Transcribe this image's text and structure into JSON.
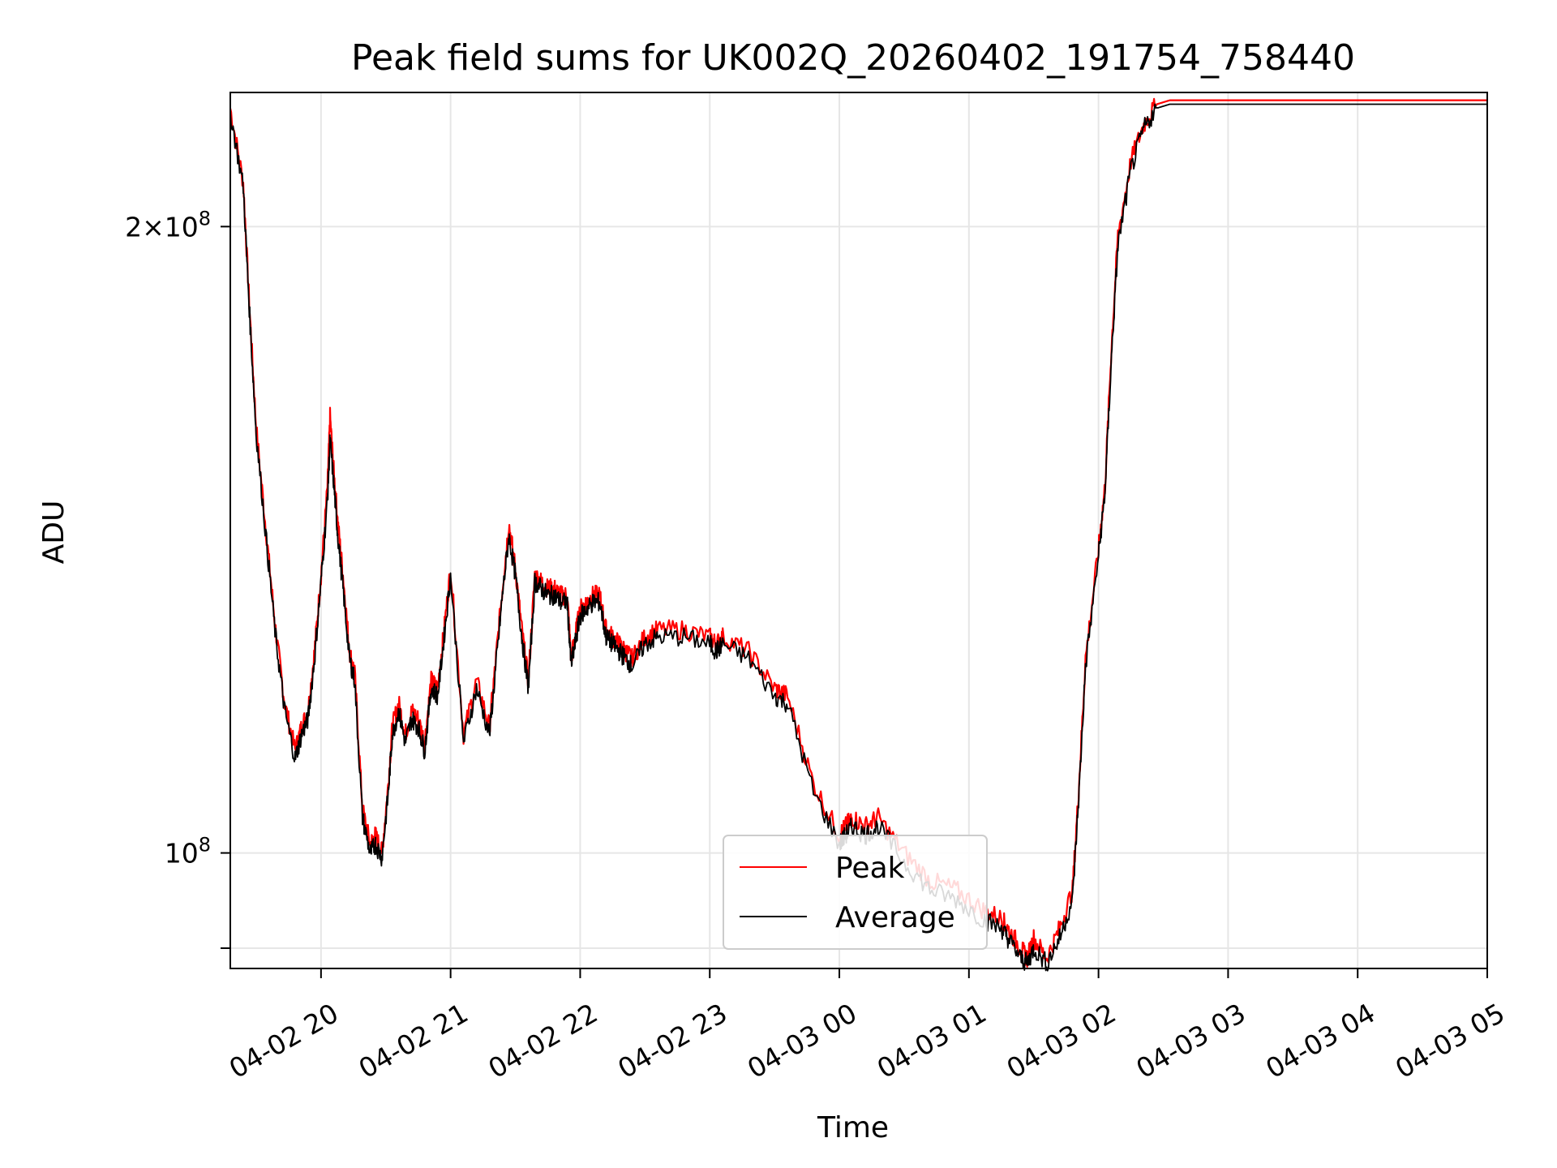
{
  "chart_data": {
    "type": "line",
    "title": "Peak field sums for UK002Q_20260402_191754_758440",
    "xlabel": "Time",
    "ylabel": "ADU",
    "yscale": "log",
    "ylim": [
      88000000,
      232000000
    ],
    "x_unit": "hours since 04-02 19:18",
    "xlim": [
      0,
      9.7
    ],
    "x_ticks": [
      {
        "label": "04-02 20",
        "value": 0.7
      },
      {
        "label": "04-02 21",
        "value": 1.7
      },
      {
        "label": "04-02 22",
        "value": 2.7
      },
      {
        "label": "04-02 23",
        "value": 3.7
      },
      {
        "label": "04-03 00",
        "value": 4.7
      },
      {
        "label": "04-03 01",
        "value": 5.7
      },
      {
        "label": "04-03 02",
        "value": 6.7
      },
      {
        "label": "04-03 03",
        "value": 7.7
      },
      {
        "label": "04-03 04",
        "value": 8.7
      },
      {
        "label": "04-03 05",
        "value": 9.7
      }
    ],
    "y_ticks": [
      {
        "label_base": "2×10",
        "label_exp": "8",
        "value": 200000000
      },
      {
        "label_base": "10",
        "label_exp": "8",
        "value": 100000000
      },
      {
        "label_base": "",
        "label_exp": "",
        "value": 90000000
      }
    ],
    "legend": {
      "position": "lower-center"
    },
    "series": [
      {
        "name": "Peak",
        "color": "#ff0000",
        "x": [
          0,
          0.1,
          0.15,
          0.2,
          0.28,
          0.35,
          0.42,
          0.5,
          0.55,
          0.6,
          0.65,
          0.7,
          0.75,
          0.77,
          0.8,
          0.83,
          0.87,
          0.92,
          0.96,
          1.02,
          1.08,
          1.12,
          1.17,
          1.22,
          1.25,
          1.3,
          1.35,
          1.4,
          1.45,
          1.5,
          1.55,
          1.6,
          1.65,
          1.7,
          1.8,
          1.9,
          2.0,
          2.05,
          2.1,
          2.15,
          2.2,
          2.25,
          2.3,
          2.35,
          2.4,
          2.45,
          2.5,
          2.55,
          2.6,
          2.63,
          2.66,
          2.7,
          2.75,
          2.8,
          2.85,
          2.9,
          2.95,
          3.0,
          3.05,
          3.1,
          3.2,
          3.3,
          3.5,
          3.7,
          3.75,
          3.8,
          4.0,
          4.2,
          4.3,
          4.5,
          4.7,
          4.75,
          4.8,
          4.9,
          5.0,
          5.2,
          5.4,
          5.6,
          5.8,
          5.95,
          6.0,
          6.1,
          6.15,
          6.2,
          6.3,
          6.4,
          6.5,
          6.55,
          6.6,
          6.7,
          6.75,
          6.8,
          6.85,
          6.95,
          7.05,
          7.15,
          7.25,
          7.35,
          7.45,
          7.55,
          7.65,
          7.8,
          8.0,
          8.2,
          8.4,
          8.55,
          8.65,
          8.75,
          8.85,
          8.95,
          9.1,
          9.2,
          9.3,
          9.4,
          9.5,
          9.55,
          9.6,
          9.65,
          9.7
        ],
        "values": [
          228000000,
          210000000,
          182000000,
          160000000,
          142000000,
          128000000,
          118000000,
          112000000,
          115000000,
          117000000,
          125000000,
          136000000,
          150000000,
          162000000,
          152000000,
          144000000,
          136000000,
          125000000,
          122000000,
          105000000,
          101000000,
          102000000,
          100000000,
          108000000,
          115000000,
          118000000,
          114000000,
          117000000,
          116000000,
          113000000,
          121000000,
          120000000,
          128000000,
          137000000,
          114000000,
          121000000,
          115000000,
          124000000,
          134000000,
          144000000,
          137000000,
          128000000,
          121000000,
          136000000,
          135000000,
          134000000,
          134000000,
          133000000,
          133000000,
          124000000,
          127000000,
          131000000,
          132000000,
          133000000,
          133000000,
          128000000,
          127000000,
          126000000,
          125000000,
          124000000,
          127000000,
          128000000,
          128000000,
          127000000,
          126000000,
          127000000,
          125000000,
          120000000,
          119000000,
          108000000,
          102000000,
          103000000,
          104000000,
          103000000,
          104000000,
          100000000,
          97000000,
          96000000,
          94000000,
          93000000,
          92000000,
          90000000,
          89000000,
          91000000,
          89000000,
          92000000,
          96000000,
          108000000,
          124000000,
          140000000,
          150000000,
          175000000,
          198000000,
          215000000,
          224000000,
          229000000,
          230000000,
          230000000,
          230000000,
          230000000,
          230000000,
          230000000,
          230000000,
          230000000,
          230000000,
          230000000,
          230000000,
          230000000,
          230000000,
          230000000,
          230000000,
          230000000,
          230000000,
          230000000,
          230000000,
          230000000,
          230000000,
          230000000,
          230000000
        ]
      },
      {
        "name": "Average",
        "color": "#000000",
        "x": [
          0,
          0.1,
          0.15,
          0.2,
          0.28,
          0.35,
          0.42,
          0.5,
          0.55,
          0.6,
          0.65,
          0.7,
          0.75,
          0.77,
          0.8,
          0.83,
          0.87,
          0.92,
          0.96,
          1.02,
          1.08,
          1.12,
          1.17,
          1.22,
          1.25,
          1.3,
          1.35,
          1.4,
          1.45,
          1.5,
          1.55,
          1.6,
          1.65,
          1.7,
          1.8,
          1.9,
          2.0,
          2.05,
          2.1,
          2.15,
          2.2,
          2.25,
          2.3,
          2.35,
          2.4,
          2.45,
          2.5,
          2.55,
          2.6,
          2.63,
          2.66,
          2.7,
          2.75,
          2.8,
          2.85,
          2.9,
          2.95,
          3.0,
          3.05,
          3.1,
          3.2,
          3.3,
          3.5,
          3.7,
          3.75,
          3.8,
          4.0,
          4.2,
          4.3,
          4.5,
          4.7,
          4.75,
          4.8,
          4.9,
          5.0,
          5.2,
          5.4,
          5.6,
          5.8,
          5.95,
          6.0,
          6.1,
          6.15,
          6.2,
          6.3,
          6.4,
          6.5,
          6.55,
          6.6,
          6.7,
          6.75,
          6.8,
          6.85,
          6.95,
          7.05,
          7.15,
          7.25,
          7.35,
          7.45,
          7.55,
          7.65,
          7.8,
          8.0,
          8.2,
          8.4,
          8.55,
          8.65,
          8.75,
          8.85,
          8.95,
          9.1,
          9.2,
          9.3,
          9.4,
          9.5,
          9.55,
          9.6,
          9.65,
          9.7
        ],
        "values": [
          227000000,
          209000000,
          181000000,
          159000000,
          141000000,
          127000000,
          117000000,
          111000000,
          114000000,
          116000000,
          124000000,
          135000000,
          148000000,
          158000000,
          150000000,
          142000000,
          134000000,
          124000000,
          121000000,
          104000000,
          100000000,
          101000000,
          99500000,
          107000000,
          114000000,
          117000000,
          113000000,
          116000000,
          115000000,
          112000000,
          120000000,
          119000000,
          127000000,
          136000000,
          113000000,
          120000000,
          114000000,
          123000000,
          133000000,
          142000000,
          136000000,
          127000000,
          120000000,
          135000000,
          134000000,
          133000000,
          133000000,
          132000000,
          132000000,
          123000000,
          126000000,
          130000000,
          131000000,
          132000000,
          132000000,
          127000000,
          126000000,
          125000000,
          124000000,
          123000000,
          126000000,
          127000000,
          127000000,
          126000000,
          125000000,
          126000000,
          124000000,
          119000000,
          118000000,
          107000000,
          101000000,
          102000000,
          103000000,
          102000000,
          103000000,
          99000000,
          96000000,
          95000000,
          93000000,
          92000000,
          91000000,
          89000000,
          88500000,
          90000000,
          88500000,
          91000000,
          95000000,
          107000000,
          123000000,
          139000000,
          149000000,
          173000000,
          196000000,
          213000000,
          223000000,
          228000000,
          229000000,
          229000000,
          229000000,
          229000000,
          229000000,
          229000000,
          229000000,
          229000000,
          229000000,
          229000000,
          229000000,
          229000000,
          229000000,
          229000000,
          229000000,
          229000000,
          229000000,
          229000000,
          229000000,
          229000000,
          229000000,
          229000000,
          229000000
        ]
      }
    ]
  }
}
